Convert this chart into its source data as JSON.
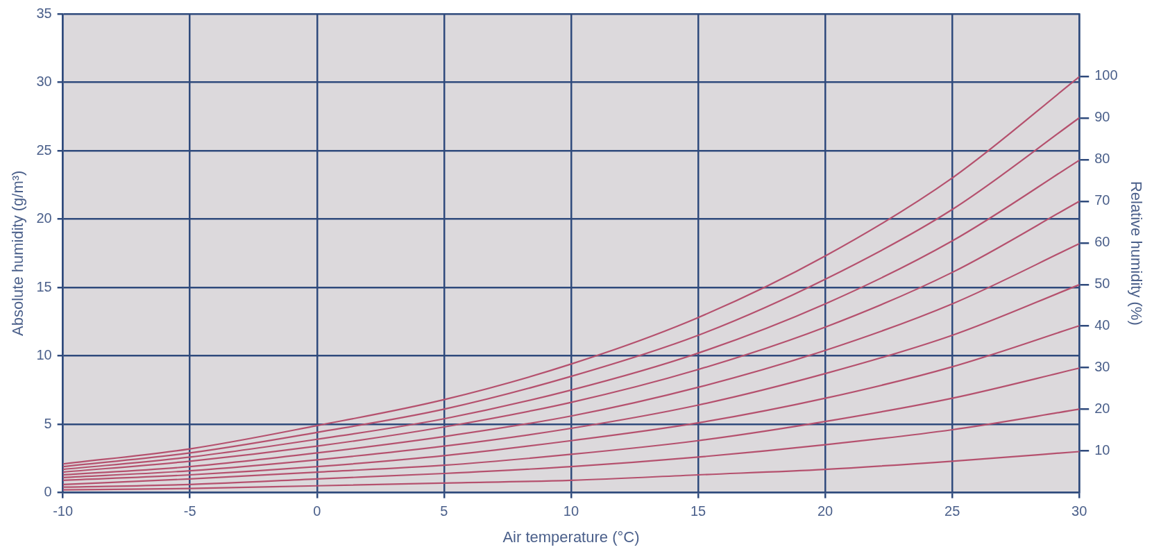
{
  "chart_data": {
    "type": "line",
    "xlabel": "Air temperature (°C)",
    "ylabel": "Absolute humidity (g/m³)",
    "y2label": "Relative humidity (%)",
    "x": [
      -10,
      -5,
      0,
      5,
      10,
      15,
      20,
      25,
      30
    ],
    "xlim": [
      -10,
      30
    ],
    "xticks": [
      -10,
      -5,
      0,
      5,
      10,
      15,
      20,
      25,
      30
    ],
    "ylim": [
      0,
      35
    ],
    "yticks": [
      0,
      5,
      10,
      15,
      20,
      25,
      30,
      35
    ],
    "y2lim": [
      0,
      115
    ],
    "y2ticks": [
      10,
      20,
      30,
      40,
      50,
      60,
      70,
      80,
      90,
      100
    ],
    "grid": true,
    "legend": false,
    "marker": "none",
    "line_style": "solid",
    "series": [
      {
        "color": "#b5516e",
        "values": [
          0.2,
          0.3,
          0.5,
          0.7,
          0.9,
          1.3,
          1.7,
          2.3,
          3.0
        ]
      },
      {
        "color": "#b5516e",
        "values": [
          0.4,
          0.6,
          1.0,
          1.4,
          1.9,
          2.6,
          3.5,
          4.6,
          6.1
        ]
      },
      {
        "color": "#b5516e",
        "values": [
          0.6,
          1.0,
          1.5,
          2.0,
          2.8,
          3.8,
          5.2,
          6.9,
          9.1
        ]
      },
      {
        "color": "#b5516e",
        "values": [
          0.9,
          1.3,
          1.9,
          2.7,
          3.8,
          5.1,
          6.9,
          9.2,
          12.2
        ]
      },
      {
        "color": "#b5516e",
        "values": [
          1.1,
          1.6,
          2.4,
          3.4,
          4.7,
          6.4,
          8.7,
          11.5,
          15.2
        ]
      },
      {
        "color": "#b5516e",
        "values": [
          1.3,
          1.9,
          2.9,
          4.1,
          5.6,
          7.7,
          10.4,
          13.8,
          18.2
        ]
      },
      {
        "color": "#b5516e",
        "values": [
          1.5,
          2.3,
          3.4,
          4.8,
          6.6,
          9.0,
          12.1,
          16.1,
          21.3
        ]
      },
      {
        "color": "#b5516e",
        "values": [
          1.7,
          2.6,
          3.9,
          5.4,
          7.5,
          10.2,
          13.8,
          18.4,
          24.3
        ]
      },
      {
        "color": "#b5516e",
        "values": [
          1.9,
          2.9,
          4.4,
          6.1,
          8.5,
          11.5,
          15.6,
          20.7,
          27.4
        ]
      },
      {
        "color": "#b5516e",
        "values": [
          2.1,
          3.2,
          4.9,
          6.8,
          9.4,
          12.8,
          17.3,
          23.0,
          30.4
        ]
      }
    ]
  }
}
